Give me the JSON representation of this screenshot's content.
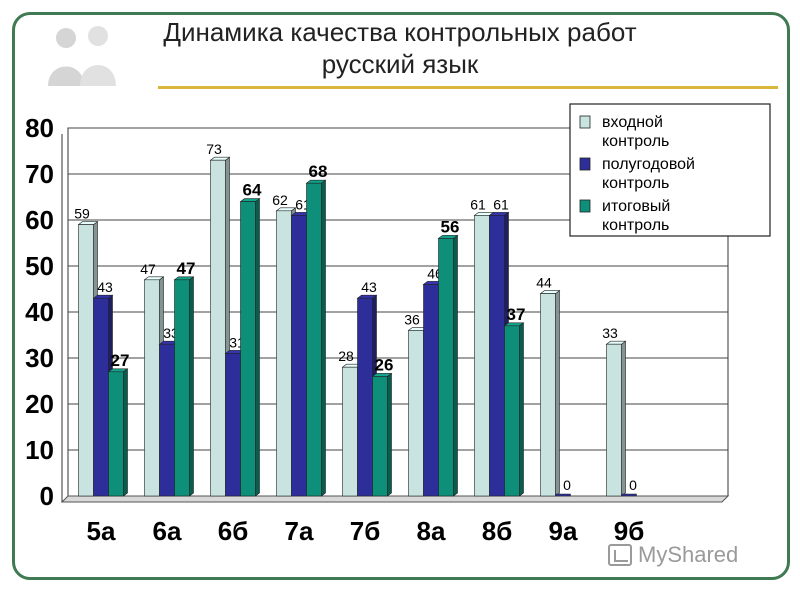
{
  "chart_data": {
    "type": "bar",
    "title": "Динамика качества контрольных работ",
    "subtitle": "русский язык",
    "categories": [
      "5а",
      "6а",
      "6б",
      "7а",
      "7б",
      "8а",
      "8б",
      "9а",
      "9б"
    ],
    "series": [
      {
        "name": "входной контроль",
        "color": "#c9e4e0",
        "values": [
          59,
          47,
          73,
          62,
          28,
          36,
          61,
          44,
          33
        ]
      },
      {
        "name": "полугодовой контроль",
        "color": "#2e2e9a",
        "values": [
          43,
          33,
          31,
          61,
          43,
          46,
          61,
          0,
          0
        ]
      },
      {
        "name": "итоговый контроль",
        "color": "#0e8f7a",
        "values": [
          27,
          47,
          64,
          68,
          26,
          56,
          37,
          null,
          null
        ]
      }
    ],
    "yticks": [
      "0",
      "10",
      "20",
      "30",
      "40",
      "50",
      "60",
      "70",
      "80"
    ],
    "ylim": [
      0,
      80
    ],
    "grid": true,
    "legend": "top-right"
  },
  "watermark": {
    "text": "MyShared"
  }
}
